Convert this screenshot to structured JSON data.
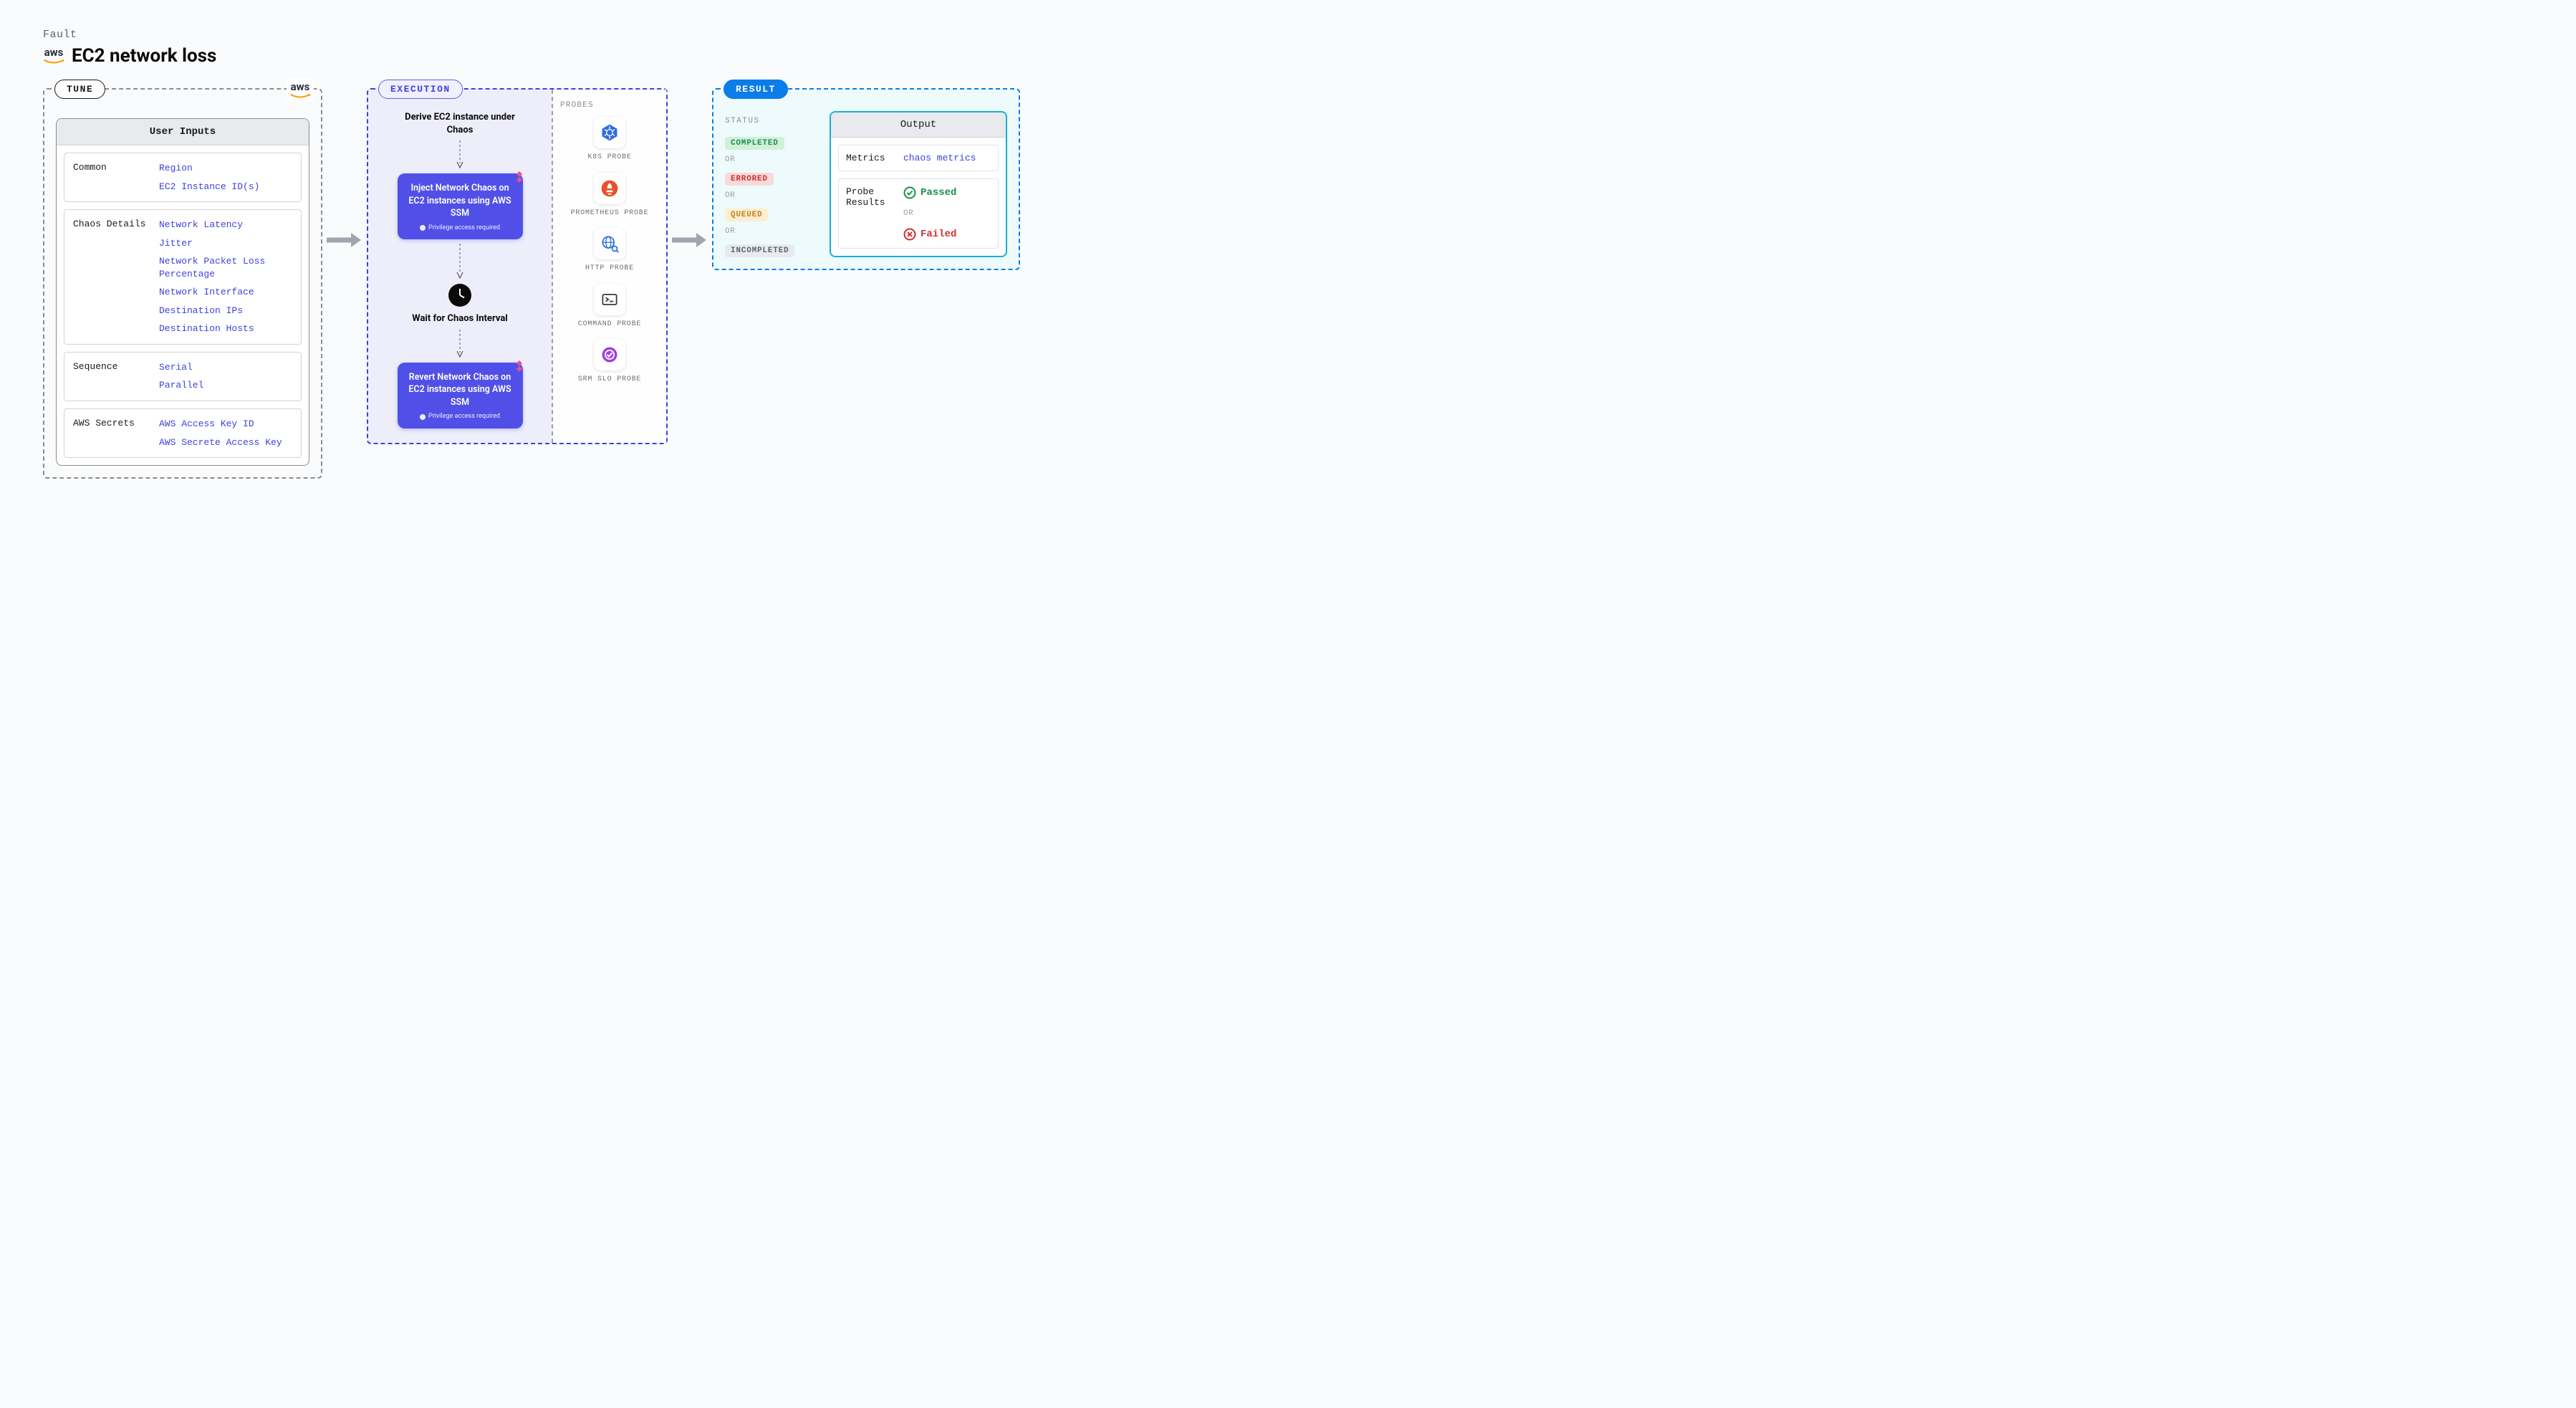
{
  "header": {
    "label": "Fault",
    "title": "EC2 network loss",
    "aws_text": "aws"
  },
  "tune": {
    "pill": "TUNE",
    "card_title": "User Inputs",
    "sections": [
      {
        "label": "Common",
        "values": [
          "Region",
          "EC2 Instance ID(s)"
        ]
      },
      {
        "label": "Chaos Details",
        "values": [
          "Network Latency",
          "Jitter",
          "Network Packet Loss Percentage",
          "Network Interface",
          "Destination IPs",
          "Destination Hosts"
        ]
      },
      {
        "label": "Sequence",
        "values": [
          "Serial",
          "Parallel"
        ]
      },
      {
        "label": "AWS Secrets",
        "values": [
          "AWS Access Key ID",
          "AWS Secrete Access Key"
        ]
      }
    ]
  },
  "execution": {
    "pill": "EXECUTION",
    "steps": {
      "derive": "Derive EC2 instance under Chaos",
      "inject": "Inject Network Chaos on EC2 instances using AWS SSM",
      "wait": "Wait for Chaos Interval",
      "revert": "Revert Network Chaos on EC2 instances using AWS SSM",
      "priv_sub": "Privilege access required"
    },
    "probes_title": "PROBES",
    "probes": [
      {
        "label": "K8S PROBE",
        "color": "#326ce5",
        "icon": "k8s"
      },
      {
        "label": "PROMETHEUS PROBE",
        "color": "#e6522c",
        "icon": "prom"
      },
      {
        "label": "HTTP PROBE",
        "color": "#2c6ed5",
        "icon": "http"
      },
      {
        "label": "COMMAND PROBE",
        "color": "#3a3a3a",
        "icon": "cmd"
      },
      {
        "label": "SRM SLO PROBE",
        "color": "#a040e0",
        "icon": "srm"
      }
    ]
  },
  "result": {
    "pill": "RESULT",
    "status_title": "STATUS",
    "or": "OR",
    "statuses": [
      {
        "label": "COMPLETED",
        "bg": "#d0f0d8",
        "fg": "#1a9050"
      },
      {
        "label": "ERRORED",
        "bg": "#f8dada",
        "fg": "#d03030"
      },
      {
        "label": "QUEUED",
        "bg": "#fceed0",
        "fg": "#c08020"
      },
      {
        "label": "INCOMPLETED",
        "bg": "#e8eaed",
        "fg": "#5a6572"
      }
    ],
    "output_title": "Output",
    "metrics_label": "Metrics",
    "metrics_value": "chaos metrics",
    "probe_results_label": "Probe Results",
    "passed": "Passed",
    "failed": "Failed"
  },
  "colors": {
    "body_bg": "#fafbfc",
    "tune_border": "#8c8c8c",
    "exec_border": "#4040e0",
    "exec_bg": "#eeeefb",
    "exec_card_bg": "#5050e8",
    "result_border": "#0a7de8",
    "result_bg": "#eefbfc",
    "link_blue": "#4040e0",
    "arrow": "#a0a6b0"
  },
  "layout": {
    "type": "flowchart",
    "panels": 3,
    "flow_direction": "left-to-right"
  }
}
